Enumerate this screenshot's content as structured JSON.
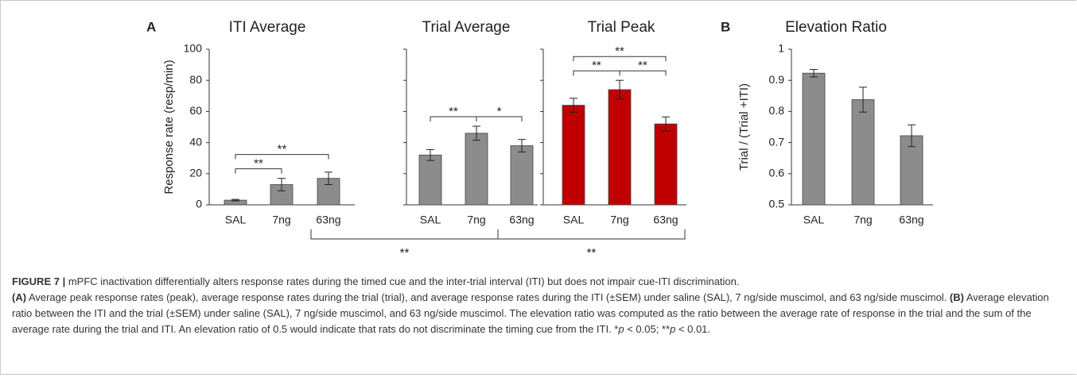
{
  "chart_data": [
    {
      "type": "bar",
      "panel_label": "A",
      "title": "ITI Average",
      "y_label": "Response rate (resp/min)",
      "categories": [
        "SAL",
        "7ng",
        "63ng"
      ],
      "values": [
        3,
        13,
        17
      ],
      "errors": [
        0.5,
        4,
        4
      ],
      "color": "#8c8c8c",
      "ylim": [
        0,
        100
      ],
      "yticks": [
        0,
        20,
        40,
        60,
        80,
        100
      ],
      "annotations": [
        {
          "pair": [
            "SAL",
            "7ng"
          ],
          "label": "**"
        },
        {
          "pair": [
            "SAL",
            "63ng"
          ],
          "label": "**"
        }
      ],
      "comparison_with_next": "**"
    },
    {
      "type": "bar",
      "title": "Trial Average",
      "categories": [
        "SAL",
        "7ng",
        "63ng"
      ],
      "values": [
        32,
        46,
        38
      ],
      "errors": [
        3.5,
        4.5,
        4
      ],
      "color": "#8c8c8c",
      "ylim": [
        0,
        100
      ],
      "yticks": [
        0,
        20,
        40,
        60,
        80,
        100
      ],
      "annotations": [
        {
          "pair": [
            "SAL",
            "7ng"
          ],
          "label": "**"
        },
        {
          "pair": [
            "7ng",
            "63ng"
          ],
          "label": "*"
        }
      ],
      "comparison_with_next": "**"
    },
    {
      "type": "bar",
      "title": "Trial Peak",
      "categories": [
        "SAL",
        "7ng",
        "63ng"
      ],
      "values": [
        64,
        74,
        52
      ],
      "errors": [
        4.5,
        6,
        4.5
      ],
      "color": "#c00000",
      "ylim": [
        0,
        100
      ],
      "yticks": [
        0,
        20,
        40,
        60,
        80,
        100
      ],
      "annotations": [
        {
          "pair": [
            "SAL",
            "7ng"
          ],
          "label": "**"
        },
        {
          "pair": [
            "7ng",
            "63ng"
          ],
          "label": "**"
        },
        {
          "pair": [
            "SAL",
            "63ng"
          ],
          "label": "**"
        }
      ]
    },
    {
      "type": "bar",
      "panel_label": "B",
      "title": "Elevation Ratio",
      "y_label": "Trial / (Trial +ITI)",
      "categories": [
        "SAL",
        "7ng",
        "63ng"
      ],
      "values": [
        0.923,
        0.838,
        0.722
      ],
      "errors": [
        0.012,
        0.04,
        0.035
      ],
      "color": "#8c8c8c",
      "ylim": [
        0.5,
        1
      ],
      "yticks": [
        0.5,
        0.6,
        0.7,
        0.8,
        0.9,
        1
      ]
    }
  ],
  "caption": {
    "paragraphs": [
      [
        {
          "text": "FIGURE 7 |",
          "bold": true
        },
        {
          "text": " mPFC inactivation differentially alters response rates during the timed cue and the inter-trial interval (ITI) but does not impair cue-ITI discrimination."
        }
      ],
      [
        {
          "text": "(A)",
          "bold": true
        },
        {
          "text": " Average peak response rates (peak), average response rates during the trial (trial), and average response rates during the ITI (±SEM) under saline (SAL), 7 ng/side muscimol, and 63 ng/side muscimol. "
        },
        {
          "text": "(B)",
          "bold": true
        },
        {
          "text": " Average elevation ratio between the ITI and the trial (±SEM) under saline (SAL), 7 ng/side muscimol, and 63 ng/side muscimol. The elevation ratio was computed as the ratio between the average rate of response in the trial and the sum of the average rate during the trial and ITI. An elevation ratio of 0.5 would indicate that rats do not discriminate the timing cue from the ITI. *"
        },
        {
          "text": "p",
          "italic": true
        },
        {
          "text": " < 0.05; **"
        },
        {
          "text": "p",
          "italic": true
        },
        {
          "text": " < 0.01."
        }
      ]
    ]
  }
}
